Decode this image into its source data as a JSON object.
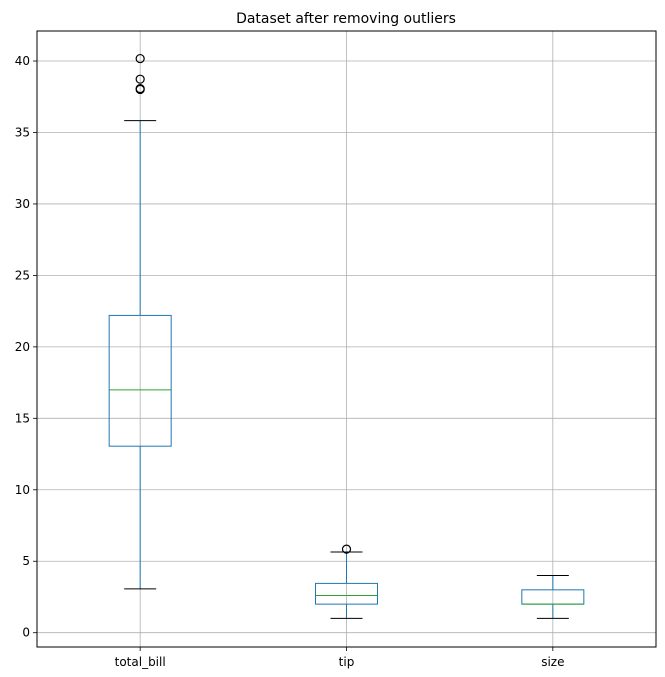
{
  "chart_data": {
    "type": "box",
    "title": "Dataset after removing outliers",
    "xlabel": "",
    "ylabel": "",
    "ylim": [
      -1.0,
      42.1
    ],
    "yticks": [
      0,
      5,
      10,
      15,
      20,
      25,
      30,
      35,
      40
    ],
    "grid": true,
    "categories": [
      "total_bill",
      "tip",
      "size"
    ],
    "boxes": [
      {
        "label": "total_bill",
        "whisker_low": 3.07,
        "q1": 13.05,
        "median": 16.99,
        "q3": 22.2,
        "whisker_high": 35.83,
        "outliers": [
          38.01,
          38.07,
          38.73,
          40.17
        ]
      },
      {
        "label": "tip",
        "whisker_low": 1.0,
        "q1": 2.0,
        "median": 2.6,
        "q3": 3.45,
        "whisker_high": 5.65,
        "outliers": [
          5.85
        ]
      },
      {
        "label": "size",
        "whisker_low": 1.0,
        "q1": 2.0,
        "median": 2.0,
        "q3": 3.0,
        "whisker_high": 4.0,
        "outliers": []
      }
    ],
    "colors": {
      "box": "#1f77b4",
      "median": "#2ca02c",
      "whisker_cap": "#000000",
      "grid": "#b0b0b0"
    }
  }
}
